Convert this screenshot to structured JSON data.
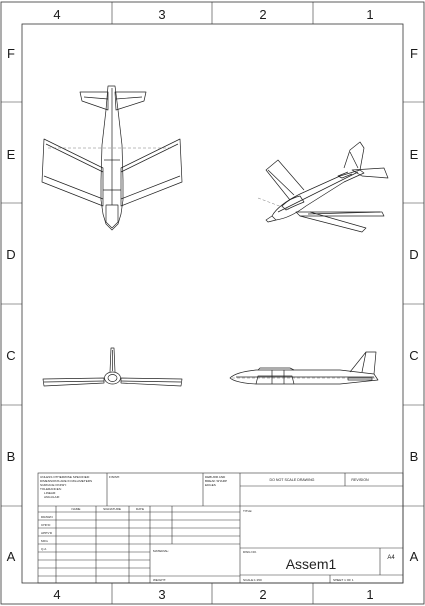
{
  "sheet": {
    "top_numbers": [
      "4",
      "3",
      "2",
      "1"
    ],
    "bottom_numbers": [
      "4",
      "3",
      "2",
      "1"
    ],
    "side_letters": [
      "F",
      "E",
      "D",
      "C",
      "B",
      "A"
    ]
  },
  "title_block": {
    "general_notes": [
      "UNLESS OTHERWISE SPECIFIED:",
      "DIMENSIONS ARE IN MILLIMETERS",
      "SURFACE FINISH:",
      "TOLERANCES:",
      "LINEAR:",
      "ANGULAR:"
    ],
    "finish_label": "FINISH:",
    "deburr_lines": [
      "DEBURR AND",
      "BREAK SHARP",
      "EDGES"
    ],
    "do_not_scale": "DO NOT SCALE DRAWING",
    "revision_label": "REVISION",
    "column_headers": [
      "NAME",
      "SIGNATURE",
      "DATE"
    ],
    "row_labels": [
      "DRAWN",
      "CHK'D",
      "APPV'D",
      "MFG",
      "Q.A"
    ],
    "title_label": "TITLE:",
    "material_label": "MATERIAL:",
    "dwg_no_label": "DWG NO.",
    "drawing_name": "Assem1",
    "sheet_size": "A4",
    "weight_label": "WEIGHT:",
    "scale_label": "SCALE:1:150",
    "sheet_label": "SHEET 1 OF 1"
  }
}
